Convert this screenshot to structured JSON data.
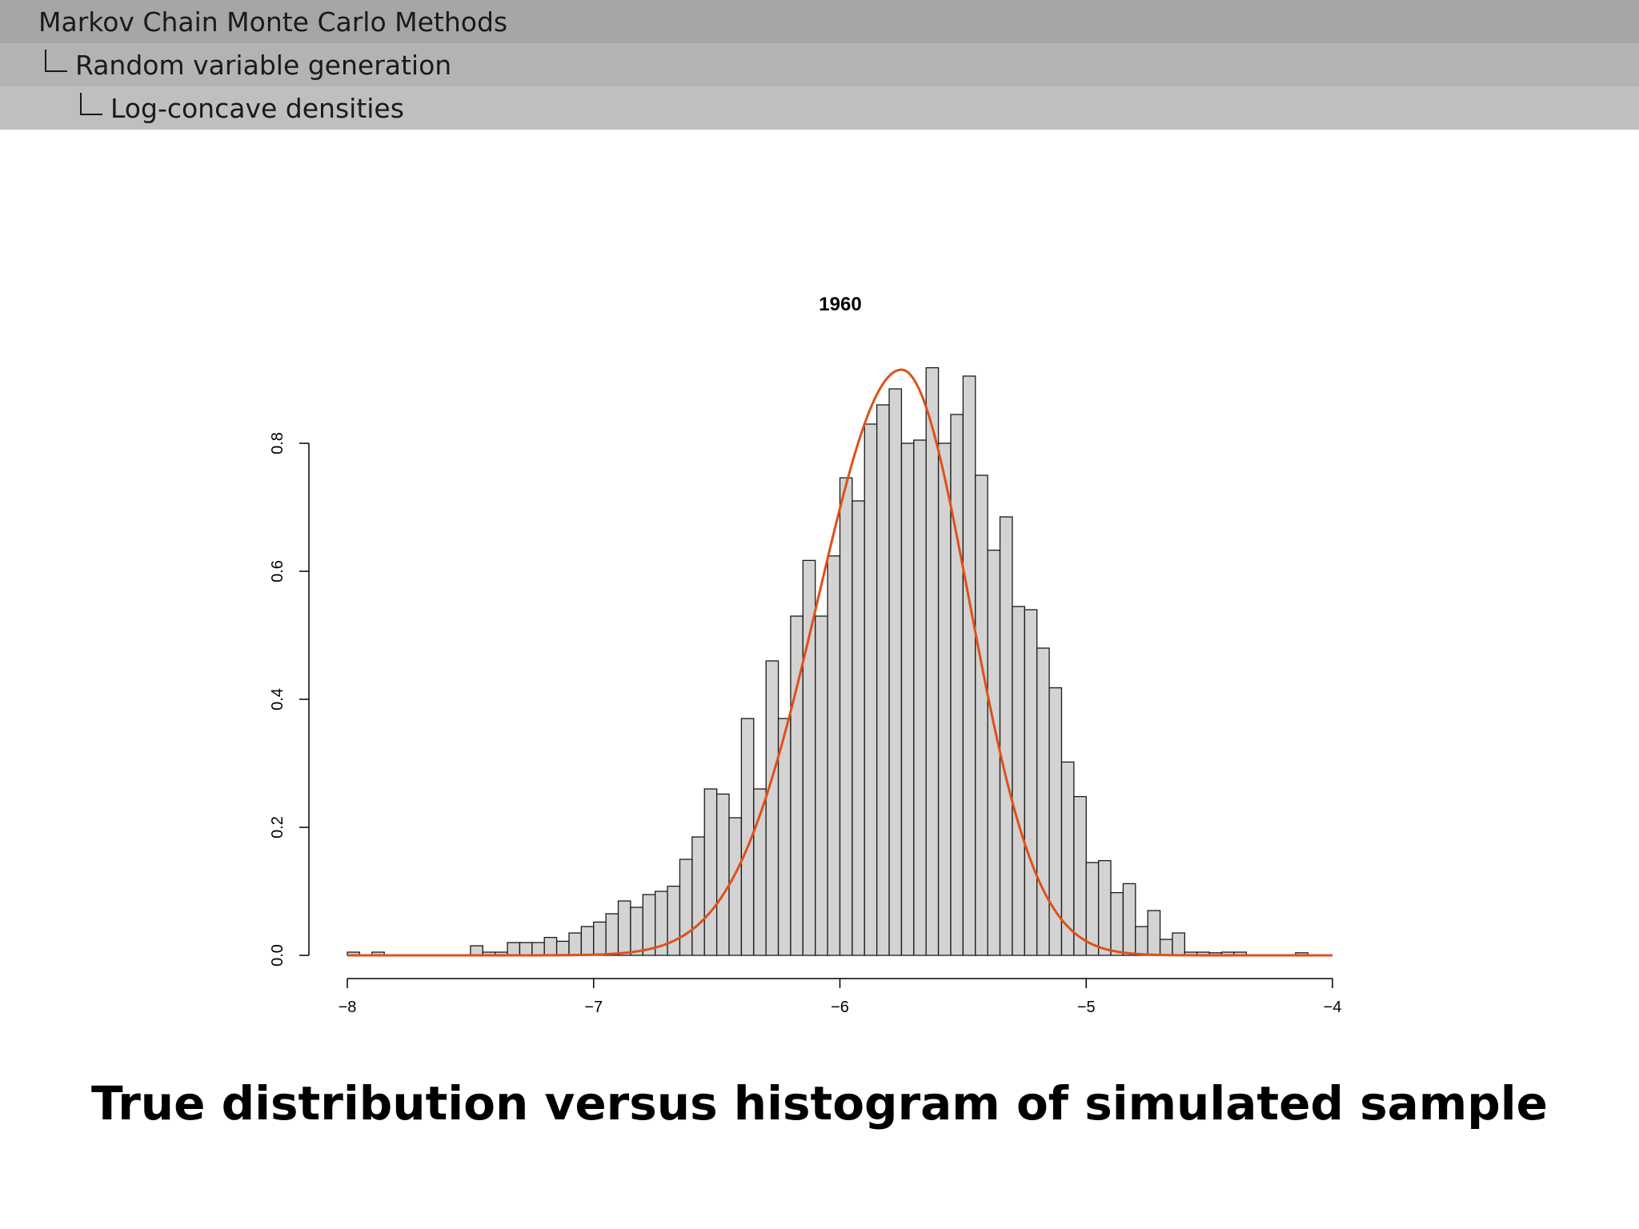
{
  "breadcrumbs": [
    "Markov Chain Monte Carlo Methods",
    "Random variable generation",
    "Log-concave densities"
  ],
  "caption": "True distribution versus histogram of simulated sample",
  "chart_data": {
    "type": "bar",
    "title": "1960",
    "xlabel": "",
    "ylabel": "",
    "xlim": [
      -8,
      -4
    ],
    "ylim": [
      0,
      0.8
    ],
    "xticks": [
      -8,
      -7,
      -6,
      -5,
      -4
    ],
    "yticks": [
      0.0,
      0.2,
      0.4,
      0.6,
      0.8
    ],
    "xtick_labels": [
      "−8",
      "−7",
      "−6",
      "−5",
      "−4"
    ],
    "ytick_labels": [
      "0.0",
      "0.2",
      "0.4",
      "0.6",
      "0.8"
    ],
    "grid": false,
    "bin_start": -8.0,
    "bin_width": 0.05,
    "counts_density": [
      0.005,
      0,
      0.005,
      0,
      0,
      0,
      0,
      0,
      0,
      0,
      0.015,
      0.005,
      0.005,
      0.02,
      0.02,
      0.02,
      0.028,
      0.022,
      0.035,
      0.045,
      0.052,
      0.065,
      0.085,
      0.075,
      0.095,
      0.1,
      0.108,
      0.15,
      0.185,
      0.26,
      0.252,
      0.215,
      0.37,
      0.26,
      0.46,
      0.37,
      0.53,
      0.617,
      0.53,
      0.624,
      0.746,
      0.71,
      0.83,
      0.86,
      0.885,
      0.8,
      0.805,
      0.918,
      0.8,
      0.845,
      0.905,
      0.75,
      0.633,
      0.685,
      0.545,
      0.54,
      0.48,
      0.418,
      0.302,
      0.248,
      0.145,
      0.148,
      0.098,
      0.112,
      0.045,
      0.07,
      0.025,
      0.035,
      0.005,
      0.005,
      0.004,
      0.005,
      0.005,
      0,
      0,
      0,
      0,
      0.004,
      0,
      0,
      0
    ],
    "series": [
      {
        "name": "",
        "kind": "density_curve",
        "color": "#e0501a",
        "mode": -5.75,
        "peak": 0.915,
        "sigma_left": 0.34,
        "sigma_right": 0.275
      }
    ],
    "bar_fill": "#d3d3d3",
    "bar_stroke": "#1a1a1a"
  }
}
